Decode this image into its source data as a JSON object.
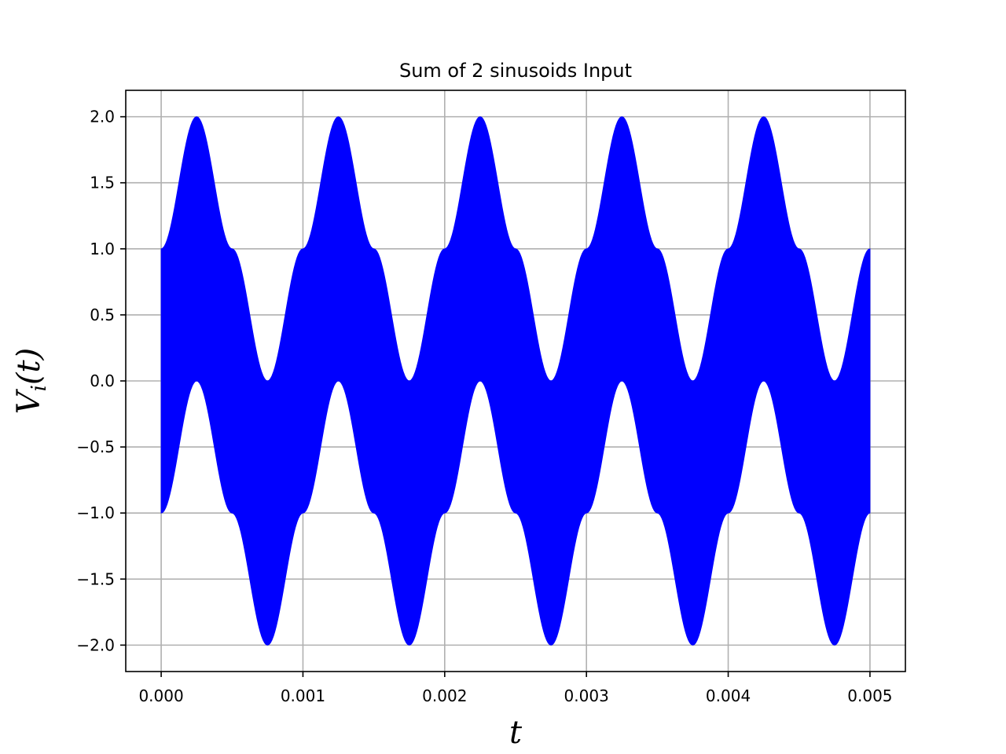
{
  "chart_data": {
    "type": "area",
    "title": "Sum of 2 sinusoids Input",
    "xlabel": "t",
    "ylabel": {
      "main": "V",
      "sub": "i",
      "arg": "(t)"
    },
    "xlim": [
      -0.00025,
      0.00525
    ],
    "ylim": [
      -2.2,
      2.2
    ],
    "x_ticks": [
      0.0,
      0.001,
      0.002,
      0.003,
      0.004,
      0.005
    ],
    "x_tick_labels": [
      "0.000",
      "0.001",
      "0.002",
      "0.003",
      "0.004",
      "0.005"
    ],
    "y_ticks": [
      2.0,
      1.5,
      1.0,
      0.5,
      0.0,
      -0.5,
      -1.0,
      -1.5,
      -2.0
    ],
    "y_tick_labels": [
      "2.0",
      "1.5",
      "1.0",
      "0.5",
      "0.0",
      "−0.5",
      "−1.0",
      "−1.5",
      "−2.0"
    ],
    "grid": true,
    "series": [
      {
        "color": "#0000ff",
        "envelope_upper": {
          "x": [
            0.0,
            0.00025,
            0.0005,
            0.00075,
            0.001,
            0.00125,
            0.0015,
            0.00175,
            0.002,
            0.00225,
            0.0025,
            0.00275,
            0.003,
            0.00325,
            0.0035,
            0.00375,
            0.004,
            0.00425,
            0.0045,
            0.00475,
            0.005
          ],
          "y": [
            1.0,
            2.0,
            1.0,
            0.0,
            1.0,
            2.0,
            1.0,
            0.0,
            1.0,
            2.0,
            1.0,
            0.0,
            1.0,
            2.0,
            1.0,
            0.0,
            1.0,
            2.0,
            1.0,
            0.0,
            1.0
          ]
        },
        "envelope_lower": {
          "x": [
            0.0,
            0.00025,
            0.0005,
            0.00075,
            0.001,
            0.00125,
            0.0015,
            0.00175,
            0.002,
            0.00225,
            0.0025,
            0.00275,
            0.003,
            0.00325,
            0.0035,
            0.00375,
            0.004,
            0.00425,
            0.0045,
            0.00475,
            0.005
          ],
          "y": [
            -1.0,
            0.0,
            -1.0,
            -2.0,
            -1.0,
            0.0,
            -1.0,
            -2.0,
            -1.0,
            0.0,
            -1.0,
            -2.0,
            -1.0,
            0.0,
            -1.0,
            -2.0,
            -1.0,
            0.0,
            -1.0,
            -2.0,
            -1.0
          ]
        }
      }
    ]
  }
}
